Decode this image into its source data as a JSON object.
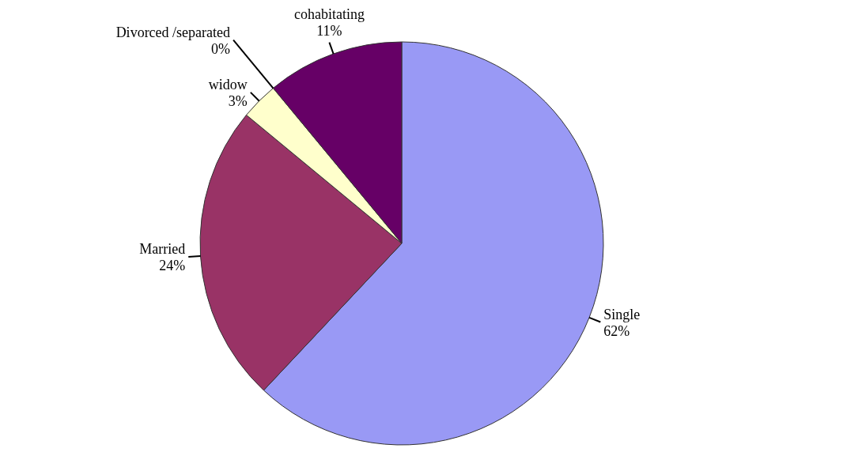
{
  "chart_data": {
    "type": "pie",
    "categories": [
      "Single",
      "Married",
      "widow",
      "Divorced /separated",
      "cohabitating"
    ],
    "values": [
      62,
      24,
      3,
      0,
      11
    ],
    "colors": [
      "#9999f5",
      "#993366",
      "#ffffcc",
      null,
      "#660066"
    ],
    "value_labels": [
      "62%",
      "24%",
      "3%",
      "0%",
      "11%"
    ]
  }
}
